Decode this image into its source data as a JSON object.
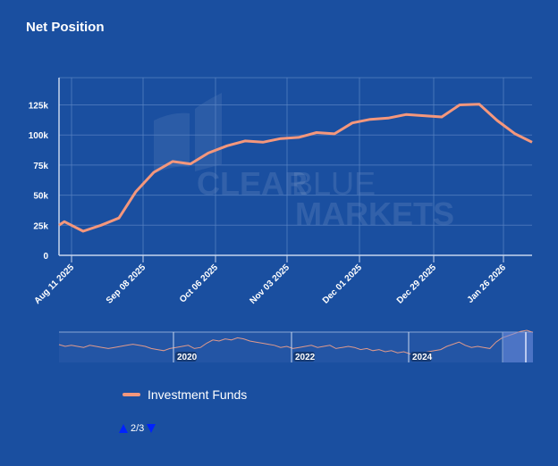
{
  "title": "Net Position",
  "watermark": {
    "line1a": "CLEAR",
    "line1b": "BLUE",
    "line2": "MARKETS"
  },
  "legend": {
    "label": "Investment Funds",
    "color": "#f4977c"
  },
  "pager": {
    "text": "2/3"
  },
  "navigator": {
    "year_labels": [
      "2020",
      "2022",
      "2024"
    ]
  },
  "colors": {
    "background": "#1a4fa0",
    "line": "#f4977c",
    "grid": "#4c77bb"
  },
  "chart_data": {
    "type": "line",
    "title": "Net Position",
    "xlabel": "",
    "ylabel": "",
    "y_ticks": [
      "0",
      "25k",
      "50k",
      "75k",
      "100k",
      "125k"
    ],
    "ylim": [
      0,
      137000
    ],
    "x_ticks": [
      "Aug 11 2025",
      "Sep 08 2025",
      "Oct 06 2025",
      "Nov 03 2025",
      "Dec 01 2025",
      "Dec 29 2025",
      "Jan 26 2026"
    ],
    "grid": true,
    "legend_position": "bottom",
    "series": [
      {
        "name": "Investment Funds",
        "x": [
          "Aug 05 2025",
          "Aug 08 2025",
          "Aug 15 2025",
          "Aug 22 2025",
          "Aug 29 2025",
          "Sep 05 2025",
          "Sep 12 2025",
          "Sep 19 2025",
          "Sep 26 2025",
          "Oct 03 2025",
          "Oct 10 2025",
          "Oct 17 2025",
          "Oct 24 2025",
          "Oct 31 2025",
          "Nov 07 2025",
          "Nov 14 2025",
          "Nov 21 2025",
          "Nov 28 2025",
          "Dec 05 2025",
          "Dec 12 2025",
          "Dec 19 2025",
          "Dec 26 2025",
          "Jan 02 2026",
          "Jan 09 2026",
          "Jan 16 2026",
          "Jan 23 2026",
          "Jan 30 2026",
          "Feb 06 2026"
        ],
        "values": [
          25000,
          28000,
          20000,
          25000,
          31000,
          53000,
          69000,
          78000,
          76000,
          85000,
          91000,
          95000,
          94000,
          97000,
          98000,
          102000,
          101000,
          110000,
          113000,
          114000,
          117000,
          116000,
          115000,
          125000,
          125500,
          112000,
          101000,
          94000
        ]
      }
    ]
  }
}
